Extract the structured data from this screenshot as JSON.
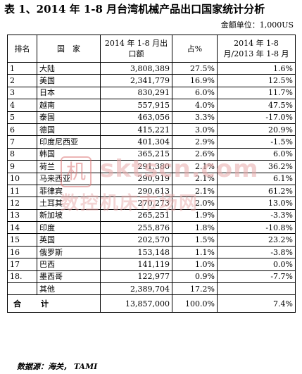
{
  "title": "表 1、2014 年 1-8 月台湾机械产品出口国家统计分析",
  "unit": "金额单位：1,000US",
  "headers": {
    "rank": "排名",
    "country": "国　家",
    "amount": "2014 年 1-8 月出口额",
    "share": "占%",
    "growth": "2014 年 1-8 月/2013 年 1-8 月"
  },
  "rows": [
    {
      "rank": "1",
      "country": "大陆",
      "amount": "3,808,389",
      "share": "27.5%",
      "growth": "1.6%"
    },
    {
      "rank": "2",
      "country": "美国",
      "amount": "2,341,779",
      "share": "16.9%",
      "growth": "12.5%"
    },
    {
      "rank": "3",
      "country": "日本",
      "amount": "830,291",
      "share": "6.0%",
      "growth": "11.7%"
    },
    {
      "rank": "4",
      "country": "越南",
      "amount": "557,915",
      "share": "4.0%",
      "growth": "47.5%"
    },
    {
      "rank": "5",
      "country": "泰国",
      "amount": "463,056",
      "share": "3.3%",
      "growth": "-17.0%"
    },
    {
      "rank": "6",
      "country": "德国",
      "amount": "415,221",
      "share": "3.0%",
      "growth": "20.9%"
    },
    {
      "rank": "7",
      "country": "印度尼西亚",
      "amount": "401,304",
      "share": "2.9%",
      "growth": "-1.5%"
    },
    {
      "rank": "8",
      "country": "韩国",
      "amount": "365,215",
      "share": "2.6%",
      "growth": "6.0%"
    },
    {
      "rank": "9",
      "country": "荷兰",
      "amount": "291,380",
      "share": "2.1%",
      "growth": "36.2%"
    },
    {
      "rank": "10",
      "country": "马来西亚",
      "amount": "290,919",
      "share": "2.1%",
      "growth": "6.1%"
    },
    {
      "rank": "11",
      "country": "菲律宾",
      "amount": "290,613",
      "share": "2.1%",
      "growth": "61.2%"
    },
    {
      "rank": "12",
      "country": "土耳其",
      "amount": "270,273",
      "share": "2.0%",
      "growth": "13.0%"
    },
    {
      "rank": "13",
      "country": "新加坡",
      "amount": "265,251",
      "share": "1.9%",
      "growth": "-3.3%"
    },
    {
      "rank": "14",
      "country": "印度",
      "amount": "255,876",
      "share": "1.8%",
      "growth": "-10.8%"
    },
    {
      "rank": "15",
      "country": "英国",
      "amount": "202,570",
      "share": "1.5%",
      "growth": "23.2%"
    },
    {
      "rank": "16",
      "country": "俄罗斯",
      "amount": "153,148",
      "share": "1.1%",
      "growth": "-3.8%"
    },
    {
      "rank": "17",
      "country": "巴西",
      "amount": "141,119",
      "share": "1.0%",
      "growth": "0.0%"
    },
    {
      "rank": "18.",
      "country": "墨西哥",
      "amount": "122,977",
      "share": "0.9%",
      "growth": "-7.7%"
    },
    {
      "rank": "",
      "country": "其他",
      "amount": "2,389,704",
      "share": "17.2%",
      "growth": ""
    }
  ],
  "total": {
    "label_a": "合",
    "label_b": "计",
    "amount": "13,857,000",
    "share": "100.0%",
    "growth": "7.4%"
  },
  "source": "数据源：海关， TAMI",
  "watermark": {
    "logo_char": "机",
    "url": "sktscn.com",
    "cn_text": "数控机床市场网"
  },
  "colors": {
    "text": "#000000",
    "border": "#000000",
    "watermark": "#e8aaaa"
  }
}
